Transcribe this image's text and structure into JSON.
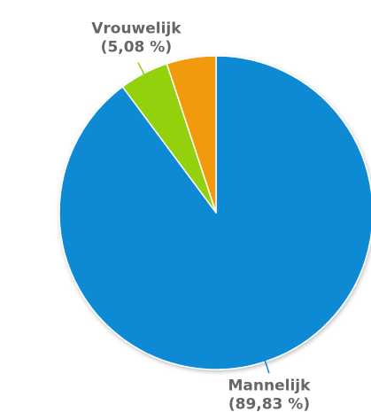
{
  "chart_data": {
    "type": "pie",
    "title": "",
    "slices": [
      {
        "name": "Mannelijk",
        "value": 89.83,
        "value_label": "(89,83 %)",
        "color": "#0b8ad3"
      },
      {
        "name": "Vrouwelijk",
        "value": 5.08,
        "value_label": "(5,08 %)",
        "color": "#94d10d"
      },
      {
        "name": "",
        "value": 5.09,
        "value_label": "",
        "color": "#f29a0c"
      }
    ],
    "legend": "none"
  }
}
